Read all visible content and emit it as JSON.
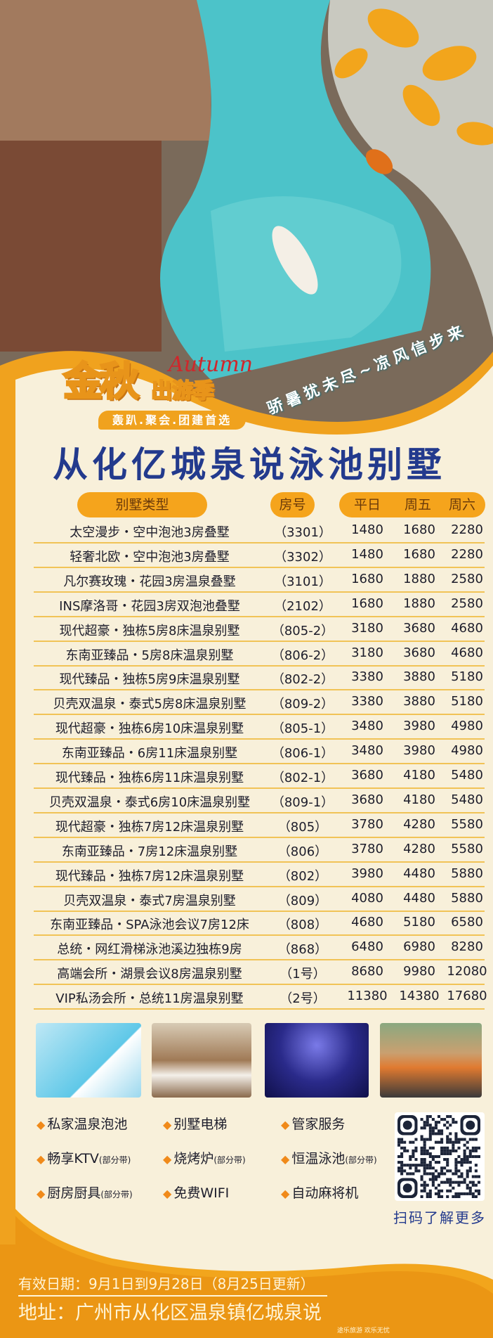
{
  "header": {
    "slogan": "骄暑犹未尽~凉风信步来",
    "logo": {
      "big": "金秋",
      "small": "出游季",
      "script": "Autumn",
      "tagline": "轰趴.聚会.团建首选"
    },
    "title": "从化亿城泉说泳池别墅"
  },
  "table": {
    "headers": {
      "type": "别墅类型",
      "room": "房号",
      "weekday": "平日",
      "friday": "周五",
      "saturday": "周六"
    },
    "rows": [
      {
        "name": "太空漫步・空中泡池3房叠墅",
        "room": "（3301）",
        "weekday": "1480",
        "friday": "1680",
        "saturday": "2280"
      },
      {
        "name": "轻奢北欧・空中泡池3房叠墅",
        "room": "（3302）",
        "weekday": "1480",
        "friday": "1680",
        "saturday": "2280"
      },
      {
        "name": "凡尔赛玫瑰・花园3房温泉叠墅",
        "room": "（3101）",
        "weekday": "1680",
        "friday": "1880",
        "saturday": "2580"
      },
      {
        "name": "INS摩洛哥・花园3房双泡池叠墅",
        "room": "（2102）",
        "weekday": "1680",
        "friday": "1880",
        "saturday": "2580"
      },
      {
        "name": "现代超豪・独栋5房8床温泉别墅",
        "room": "（805-2）",
        "weekday": "3180",
        "friday": "3680",
        "saturday": "4680"
      },
      {
        "name": "东南亚臻品・5房8床温泉别墅",
        "room": "（806-2）",
        "weekday": "3180",
        "friday": "3680",
        "saturday": "4680"
      },
      {
        "name": "现代臻品・独栋5房9床温泉别墅",
        "room": "（802-2）",
        "weekday": "3380",
        "friday": "3880",
        "saturday": "5180"
      },
      {
        "name": "贝壳双温泉・泰式5房8床温泉别墅",
        "room": "（809-2）",
        "weekday": "3380",
        "friday": "3880",
        "saturday": "5180"
      },
      {
        "name": "现代超豪・独栋6房10床温泉别墅",
        "room": "（805-1）",
        "weekday": "3480",
        "friday": "3980",
        "saturday": "4980"
      },
      {
        "name": "东南亚臻品・6房11床温泉别墅",
        "room": "（806-1）",
        "weekday": "3480",
        "friday": "3980",
        "saturday": "4980"
      },
      {
        "name": "现代臻品・独栋6房11床温泉别墅",
        "room": "（802-1）",
        "weekday": "3680",
        "friday": "4180",
        "saturday": "5480"
      },
      {
        "name": "贝壳双温泉・泰式6房10床温泉别墅",
        "room": "（809-1）",
        "weekday": "3680",
        "friday": "4180",
        "saturday": "5480"
      },
      {
        "name": "现代超豪・独栋7房12床温泉别墅",
        "room": "（805）",
        "weekday": "3780",
        "friday": "4280",
        "saturday": "5580"
      },
      {
        "name": "东南亚臻品・7房12床温泉别墅",
        "room": "（806）",
        "weekday": "3780",
        "friday": "4280",
        "saturday": "5580"
      },
      {
        "name": "现代臻品・独栋7房12床温泉别墅",
        "room": "（802）",
        "weekday": "3980",
        "friday": "4480",
        "saturday": "5880"
      },
      {
        "name": "贝壳双温泉・泰式7房温泉别墅",
        "room": "（809）",
        "weekday": "4080",
        "friday": "4480",
        "saturday": "5880"
      },
      {
        "name": "东南亚臻品・SPA泳池会议7房12床",
        "room": "（808）",
        "weekday": "4680",
        "friday": "5180",
        "saturday": "6580"
      },
      {
        "name": "总统・网红滑梯泳池溪边独栋9房",
        "room": "（868）",
        "weekday": "6480",
        "friday": "6980",
        "saturday": "8280"
      },
      {
        "name": "高端会所・湖景会议8房温泉别墅",
        "room": "（1号）",
        "weekday": "8680",
        "friday": "9980",
        "saturday": "12080"
      },
      {
        "name": "VIP私汤会所・总统11房温泉别墅",
        "room": "（2号）",
        "weekday": "11380",
        "friday": "14380",
        "saturday": "17680"
      }
    ]
  },
  "amenities": [
    {
      "label": "私家温泉泡池",
      "note": ""
    },
    {
      "label": "别墅电梯",
      "note": ""
    },
    {
      "label": "管家服务",
      "note": ""
    },
    {
      "label": "畅享KTV",
      "note": "(部分带)"
    },
    {
      "label": "烧烤炉",
      "note": "(部分带)"
    },
    {
      "label": "恒温泳池",
      "note": "(部分带)"
    },
    {
      "label": "厨房厨具",
      "note": "(部分带)"
    },
    {
      "label": "免费WIFI",
      "note": ""
    },
    {
      "label": "自动麻将机",
      "note": ""
    }
  ],
  "qr": {
    "caption": "扫码了解更多"
  },
  "footer": {
    "validity": "有效日期：9月1日到9月28日（8月25日更新）",
    "address": "地址：广州市从化区温泉镇亿城泉说",
    "watermark": "途乐旅游 欢乐无忧"
  },
  "colors": {
    "accent": "#f5a41c",
    "title": "#233a8d",
    "cream": "#f8f0da",
    "pool": "#4cc3c9"
  }
}
